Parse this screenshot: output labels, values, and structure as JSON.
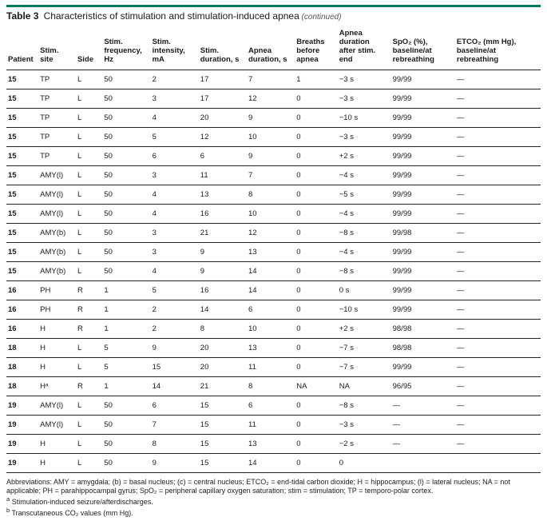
{
  "colors": {
    "top_rule": "#007a60",
    "text": "#1a1a1a",
    "rule": "#222222",
    "background": "#ffffff"
  },
  "fonts": {
    "family": "Arial, Helvetica, sans-serif",
    "title_size_pt": 12,
    "header_size_pt": 9.5,
    "cell_size_pt": 9.5,
    "abbrev_size_pt": 9
  },
  "table": {
    "type": "table",
    "number_label": "Table 3",
    "caption": "Characteristics of stimulation and stimulation-induced apnea",
    "continued_label": "(continued)",
    "columns": [
      "Patient",
      "Stim. site",
      "Side",
      "Stim. frequency, Hz",
      "Stim. intensity, mA",
      "Stim. duration, s",
      "Apnea duration, s",
      "Breaths before apnea",
      "Apnea duration after stim. end",
      "SpO₂ (%), baseline/at rebreathing",
      "ETCO₂ (mm Hg), baseline/at rebreathing"
    ],
    "column_widths_pct": [
      6,
      7,
      5,
      9,
      9,
      9,
      9,
      8,
      10,
      12,
      16
    ],
    "rows": [
      [
        "15",
        "TP",
        "L",
        "50",
        "2",
        "17",
        "7",
        "1",
        "−3 s",
        "99/99",
        "—"
      ],
      [
        "15",
        "TP",
        "L",
        "50",
        "3",
        "17",
        "12",
        "0",
        "−3 s",
        "99/99",
        "—"
      ],
      [
        "15",
        "TP",
        "L",
        "50",
        "4",
        "20",
        "9",
        "0",
        "−10 s",
        "99/99",
        "—"
      ],
      [
        "15",
        "TP",
        "L",
        "50",
        "5",
        "12",
        "10",
        "0",
        "−3 s",
        "99/99",
        "—"
      ],
      [
        "15",
        "TP",
        "L",
        "50",
        "6",
        "6",
        "9",
        "0",
        "+2 s",
        "99/99",
        "—"
      ],
      [
        "15",
        "AMY(l)",
        "L",
        "50",
        "3",
        "11",
        "7",
        "0",
        "−4 s",
        "99/99",
        "—"
      ],
      [
        "15",
        "AMY(l)",
        "L",
        "50",
        "4",
        "13",
        "8",
        "0",
        "−5 s",
        "99/99",
        "—"
      ],
      [
        "15",
        "AMY(l)",
        "L",
        "50",
        "4",
        "16",
        "10",
        "0",
        "−4 s",
        "99/99",
        "—"
      ],
      [
        "15",
        "AMY(b)",
        "L",
        "50",
        "3",
        "21",
        "12",
        "0",
        "−8 s",
        "99/98",
        "—"
      ],
      [
        "15",
        "AMY(b)",
        "L",
        "50",
        "3",
        "9",
        "13",
        "0",
        "−4 s",
        "99/99",
        "—"
      ],
      [
        "15",
        "AMY(b)",
        "L",
        "50",
        "4",
        "9",
        "14",
        "0",
        "−8 s",
        "99/99",
        "—"
      ],
      [
        "16",
        "PH",
        "R",
        "1",
        "5",
        "16",
        "14",
        "0",
        "0 s",
        "99/99",
        "—"
      ],
      [
        "16",
        "PH",
        "R",
        "1",
        "2",
        "14",
        "6",
        "0",
        "−10 s",
        "99/99",
        "—"
      ],
      [
        "16",
        "H",
        "R",
        "1",
        "2",
        "8",
        "10",
        "0",
        "+2 s",
        "98/98",
        "—"
      ],
      [
        "18",
        "H",
        "L",
        "5",
        "9",
        "20",
        "13",
        "0",
        "−7 s",
        "98/98",
        "—"
      ],
      [
        "18",
        "H",
        "L",
        "5",
        "15",
        "20",
        "11",
        "0",
        "−7 s",
        "99/99",
        "—"
      ],
      [
        "18",
        "Hᵃ",
        "R",
        "1",
        "14",
        "21",
        "8",
        "NA",
        "NA",
        "96/95",
        "—"
      ],
      [
        "19",
        "AMY(l)",
        "L",
        "50",
        "6",
        "15",
        "6",
        "0",
        "−8 s",
        "—",
        "—"
      ],
      [
        "19",
        "AMY(l)",
        "L",
        "50",
        "7",
        "15",
        "11",
        "0",
        "−3 s",
        "—",
        "—"
      ],
      [
        "19",
        "H",
        "L",
        "50",
        "8",
        "15",
        "13",
        "0",
        "−2 s",
        "—",
        "—"
      ],
      [
        "19",
        "H",
        "L",
        "50",
        "9",
        "15",
        "14",
        "0",
        "0",
        "",
        ""
      ]
    ]
  },
  "footer": {
    "abbrev": "Abbreviations: AMY = amygdala; (b) = basal nucleus; (c) = central nucleus; ETCO₂ = end-tidal carbon dioxide; H = hippocampus; (l) = lateral nucleus; NA = not applicable; PH = parahippocampal gyrus; SpO₂ = peripheral capillary oxygen saturation; stim = stimulation; TP = temporo-polar cortex.",
    "note_a": "Stimulation-induced seizure/afterdischarges.",
    "note_a_marker": "a",
    "note_b": "Transcutaneous CO₂ values (mm Hg).",
    "note_b_marker": "b"
  }
}
